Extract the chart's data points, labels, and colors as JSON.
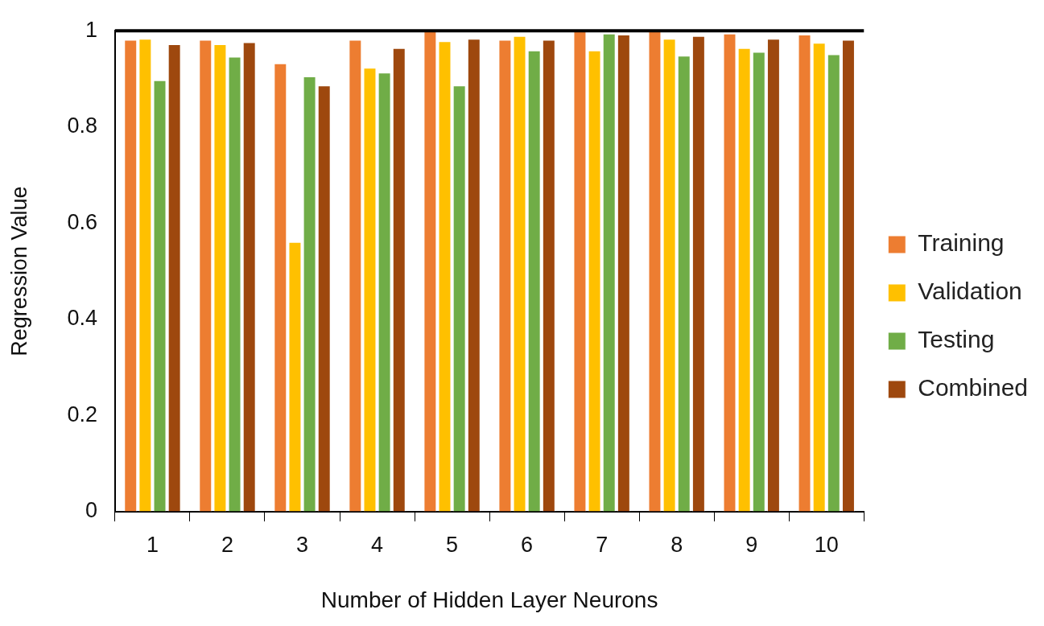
{
  "chart_data": {
    "type": "bar",
    "xlabel": "Number of Hidden Layer Neurons",
    "ylabel": "Regression Value",
    "categories": [
      "1",
      "2",
      "3",
      "4",
      "5",
      "6",
      "7",
      "8",
      "9",
      "10"
    ],
    "series": [
      {
        "name": "Training",
        "color": "#ed7d31",
        "values": [
          0.981,
          0.981,
          0.932,
          0.981,
          0.999,
          0.981,
          0.999,
          0.999,
          0.994,
          0.992
        ]
      },
      {
        "name": "Validation",
        "color": "#ffc000",
        "values": [
          0.983,
          0.972,
          0.561,
          0.923,
          0.978,
          0.989,
          0.959,
          0.983,
          0.964,
          0.975
        ]
      },
      {
        "name": "Testing",
        "color": "#70ad47",
        "values": [
          0.897,
          0.946,
          0.905,
          0.913,
          0.886,
          0.959,
          0.994,
          0.948,
          0.956,
          0.951
        ]
      },
      {
        "name": "Combined",
        "color": "#9e480e",
        "values": [
          0.972,
          0.976,
          0.886,
          0.964,
          0.983,
          0.981,
          0.992,
          0.989,
          0.983,
          0.981
        ]
      }
    ],
    "ylim": [
      0,
      1
    ],
    "yticks": [
      0,
      0.2,
      0.4,
      0.6,
      0.8,
      1
    ],
    "grid": false,
    "legend": "right"
  }
}
